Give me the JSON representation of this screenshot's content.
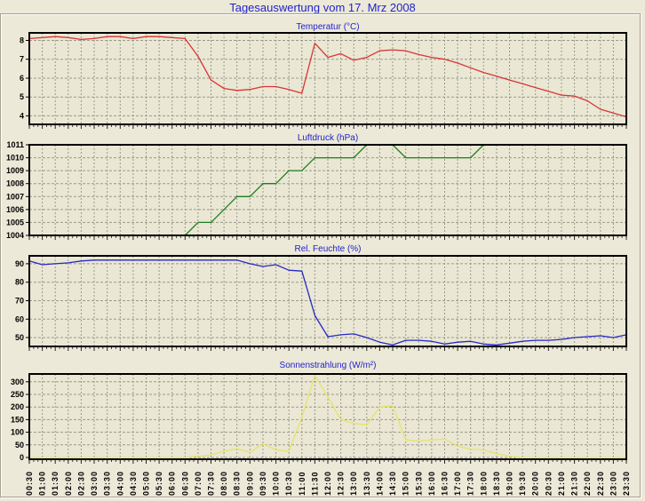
{
  "title": "Tagesauswertung vom 17. Mrz 2008",
  "colors": {
    "page_bg": "#ECE9D8",
    "plot_bg": "#EAE7D4",
    "grid": "#99998C",
    "frame": "#000000",
    "title_text": "#2222CC",
    "tick_text": "#000000"
  },
  "chart_data": {
    "type": "line",
    "legend": "none",
    "grid": "dashed, vertical line every 30 min, horizontal line every labeled tick",
    "categories": [
      "00:30",
      "01:00",
      "01:30",
      "02:00",
      "02:30",
      "03:00",
      "03:30",
      "04:00",
      "04:30",
      "05:00",
      "05:30",
      "06:00",
      "06:30",
      "07:00",
      "07:30",
      "08:00",
      "08:30",
      "09:00",
      "09:30",
      "10:00",
      "10:30",
      "11:00",
      "11:30",
      "12:00",
      "12:30",
      "13:00",
      "13:30",
      "14:00",
      "14:30",
      "15:00",
      "15:30",
      "16:00",
      "16:30",
      "17:00",
      "17:30",
      "18:00",
      "18:30",
      "19:00",
      "19:30",
      "20:00",
      "20:30",
      "21:00",
      "21:30",
      "22:00",
      "22:30",
      "23:00",
      "23:30"
    ],
    "charts": [
      {
        "name": "temperature",
        "title": "Temperatur (°C)",
        "color": "#D93535",
        "ylim": [
          3.55,
          8.4
        ],
        "yticks": [
          4,
          5,
          6,
          7,
          8
        ],
        "values": [
          8.1,
          8.15,
          8.2,
          8.15,
          8.05,
          8.1,
          8.2,
          8.2,
          8.1,
          8.2,
          8.2,
          8.15,
          8.1,
          7.15,
          5.9,
          5.45,
          5.35,
          5.4,
          5.55,
          5.55,
          5.4,
          5.2,
          7.85,
          7.1,
          7.3,
          6.95,
          7.1,
          7.45,
          7.5,
          7.45,
          7.25,
          7.1,
          7.0,
          6.8,
          6.55,
          6.3,
          6.1,
          5.9,
          5.7,
          5.5,
          5.3,
          5.1,
          5.05,
          4.8,
          4.35,
          4.15,
          3.95
        ]
      },
      {
        "name": "pressure",
        "title": "Luftdruck (hPa)",
        "color": "#1E7E1E",
        "ylim": [
          1004,
          1011
        ],
        "yticks": [
          1004,
          1005,
          1006,
          1007,
          1008,
          1009,
          1010,
          1011
        ],
        "values": [
          1004,
          1004,
          1004,
          1004,
          1004,
          1004,
          1004,
          1004,
          1004,
          1004,
          1004,
          1004,
          1004,
          1005,
          1005,
          1006,
          1007,
          1007,
          1008,
          1008,
          1009,
          1009,
          1010,
          1010,
          1010,
          1010,
          1011,
          1011,
          1011,
          1010,
          1010,
          1010,
          1010,
          1010,
          1010,
          1011,
          1011,
          1011,
          1011,
          1011,
          1011,
          1011,
          1011,
          1011,
          1011,
          1011,
          1011
        ]
      },
      {
        "name": "humidity",
        "title": "Rel. Feuchte (%)",
        "color": "#2828C8",
        "ylim": [
          45.2,
          94.3
        ],
        "yticks": [
          50,
          60,
          70,
          80,
          90
        ],
        "values": [
          91.5,
          89.5,
          90,
          90.5,
          91.5,
          92,
          92,
          92,
          92,
          92,
          92,
          92,
          92,
          92,
          92,
          92,
          92,
          90,
          88.5,
          89.5,
          86.5,
          86,
          62,
          50.5,
          51.5,
          52,
          50,
          47.5,
          46,
          48.5,
          48.5,
          48,
          46.5,
          47.5,
          48,
          46.5,
          46,
          47,
          48,
          48.5,
          48.5,
          49,
          50,
          50.5,
          51,
          50,
          51.5
        ]
      },
      {
        "name": "solar",
        "title": "Sonnenstrahlung (W/m²)",
        "color": "#E4E46A",
        "ylim": [
          -7,
          331
        ],
        "yticks": [
          0,
          50,
          100,
          150,
          200,
          250,
          300
        ],
        "values": [
          0,
          0,
          0,
          0,
          0,
          0,
          0,
          0,
          0,
          0,
          0,
          0,
          0,
          5,
          10,
          25,
          35,
          20,
          55,
          30,
          25,
          160,
          325,
          240,
          150,
          135,
          130,
          200,
          205,
          70,
          65,
          70,
          73,
          45,
          33,
          30,
          15,
          5,
          0,
          0,
          0,
          0,
          0,
          0,
          0,
          0,
          0
        ]
      }
    ]
  }
}
